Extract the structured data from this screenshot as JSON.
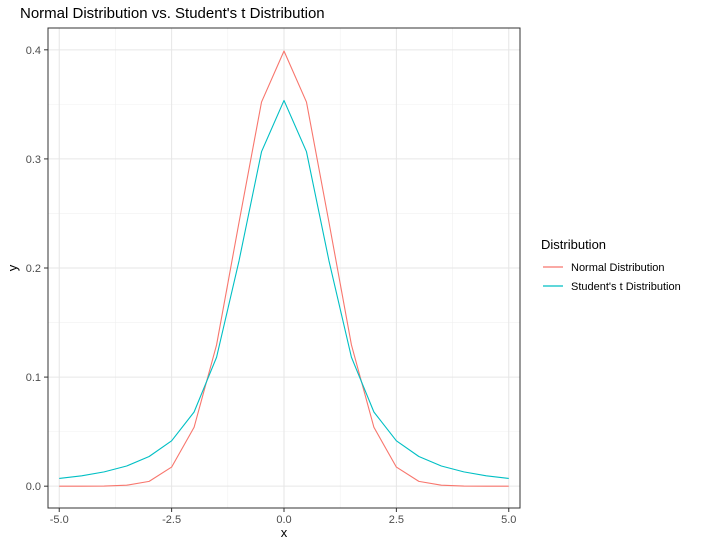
{
  "chart_data": {
    "type": "line",
    "title": "Normal Distribution vs. Student's t Distribution",
    "xlabel": "x",
    "ylabel": "y",
    "xlim": [
      -5.25,
      5.25
    ],
    "ylim": [
      -0.02,
      0.42
    ],
    "x_ticks": [
      -5.0,
      -2.5,
      0.0,
      2.5,
      5.0
    ],
    "x_tick_labels": [
      "-5.0",
      "-2.5",
      "0.0",
      "2.5",
      "5.0"
    ],
    "y_ticks": [
      0.0,
      0.1,
      0.2,
      0.3,
      0.4
    ],
    "y_tick_labels": [
      "0.0",
      "0.1",
      "0.2",
      "0.3",
      "0.4"
    ],
    "grid": true,
    "legend": {
      "title": "Distribution",
      "position": "right"
    },
    "x": [
      -5.0,
      -4.5,
      -4.0,
      -3.5,
      -3.0,
      -2.5,
      -2.0,
      -1.5,
      -1.0,
      -0.5,
      0.0,
      0.5,
      1.0,
      1.5,
      2.0,
      2.5,
      3.0,
      3.5,
      4.0,
      4.5,
      5.0
    ],
    "series": [
      {
        "name": "Normal Distribution",
        "color": "#F8766D",
        "values": [
          0.0,
          0.0,
          0.0001,
          0.0009,
          0.0044,
          0.0175,
          0.054,
          0.1295,
          0.242,
          0.3521,
          0.3989,
          0.3521,
          0.242,
          0.1295,
          0.054,
          0.0175,
          0.0044,
          0.0009,
          0.0001,
          0.0,
          0.0
        ]
      },
      {
        "name": "Student's t Distribution",
        "color": "#00BFC4",
        "values": [
          0.0071,
          0.0095,
          0.0131,
          0.0185,
          0.0272,
          0.0416,
          0.068,
          0.1182,
          0.2067,
          0.3066,
          0.3536,
          0.3066,
          0.2067,
          0.1182,
          0.068,
          0.0416,
          0.0272,
          0.0185,
          0.0131,
          0.0095,
          0.0071
        ]
      }
    ]
  }
}
